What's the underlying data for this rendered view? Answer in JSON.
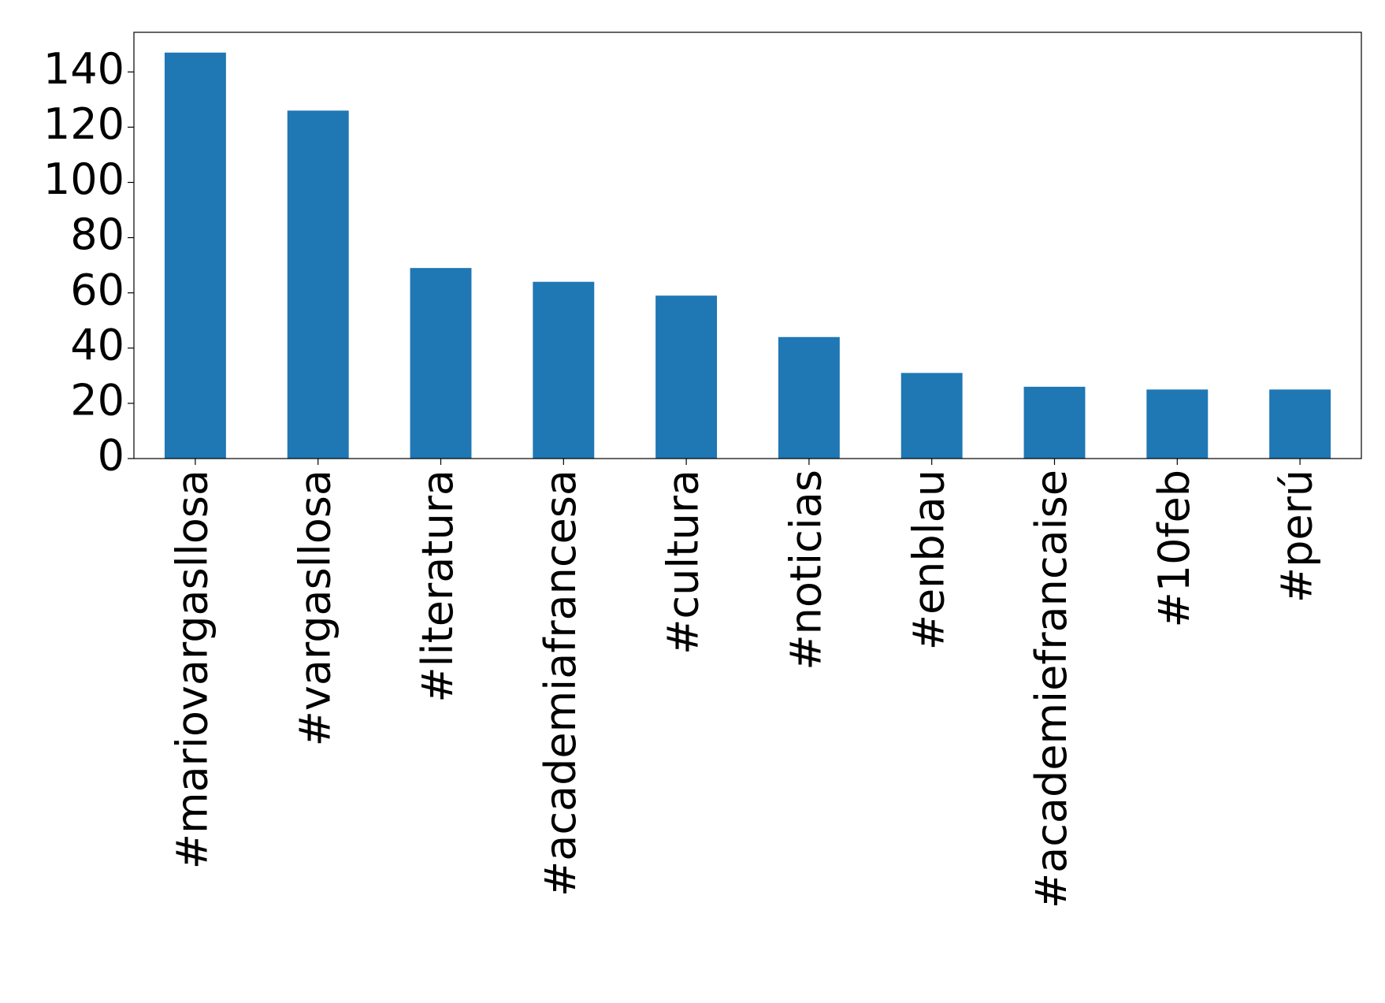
{
  "chart_data": {
    "type": "bar",
    "categories": [
      "#mariovargasllosa",
      "#vargasllosa",
      "#literatura",
      "#academiafrancesa",
      "#cultura",
      "#noticias",
      "#enblau",
      "#academiefrancaise",
      "#10feb",
      "#perú"
    ],
    "values": [
      147,
      126,
      69,
      64,
      59,
      44,
      31,
      26,
      25,
      25
    ],
    "color": "#1f77b4",
    "ylim": [
      0,
      154.35
    ],
    "yticks": [
      0,
      20,
      40,
      60,
      80,
      100,
      120,
      140
    ],
    "grid": false
  }
}
